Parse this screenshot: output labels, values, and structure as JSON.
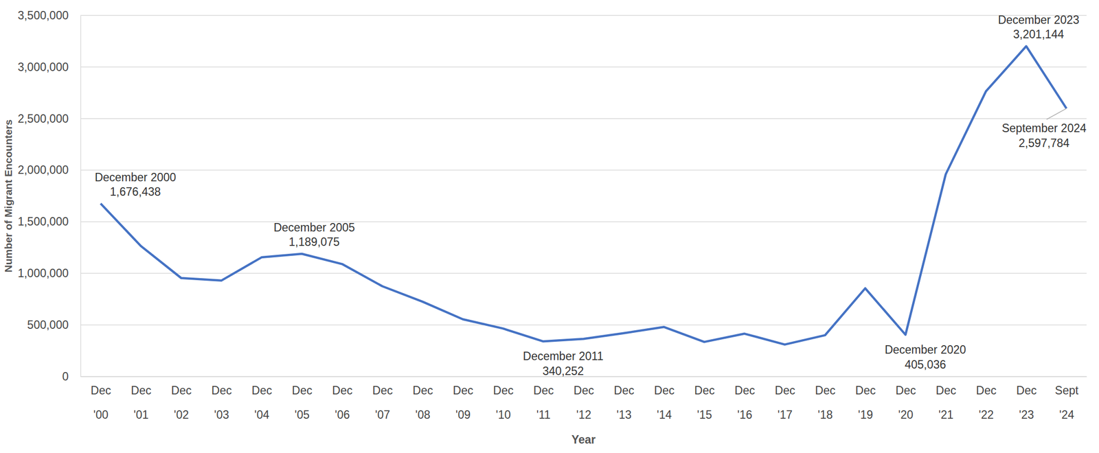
{
  "chart_data": {
    "type": "line",
    "x_label": "Year",
    "y_label": "Number of Migrant Encounters",
    "categories": [
      "Dec '00",
      "Dec '01",
      "Dec '02",
      "Dec '03",
      "Dec '04",
      "Dec '05",
      "Dec '06",
      "Dec '07",
      "Dec '08",
      "Dec '09",
      "Dec '10",
      "Dec '11",
      "Dec '12",
      "Dec '13",
      "Dec '14",
      "Dec '15",
      "Dec '16",
      "Dec '17",
      "Dec '18",
      "Dec '19",
      "Dec '20",
      "Dec '21",
      "Dec '22",
      "Dec '23",
      "Sept '24"
    ],
    "values": [
      1676438,
      1265000,
      955000,
      930000,
      1155000,
      1189075,
      1090000,
      875000,
      725000,
      555000,
      465000,
      340252,
      365000,
      420000,
      480000,
      335000,
      415000,
      310000,
      400000,
      855000,
      405036,
      1960000,
      2765000,
      3201144,
      2597784
    ],
    "value_labels": [
      "1,676,438",
      null,
      null,
      null,
      null,
      "1,189,075",
      null,
      null,
      null,
      null,
      null,
      "340,252",
      null,
      null,
      null,
      null,
      null,
      null,
      null,
      null,
      "405,036",
      null,
      null,
      "3,201,144",
      "2,597,784"
    ],
    "annotations": [
      {
        "category": "Dec '00",
        "text": "December 2000"
      },
      {
        "category": "Dec '05",
        "text": "December 2005"
      },
      {
        "category": "Dec '11",
        "text": "December 2011"
      },
      {
        "category": "Dec '20",
        "text": "December 2020"
      },
      {
        "category": "Dec '23",
        "text": "December 2023"
      },
      {
        "category": "Sept '24",
        "text": "September 2024"
      }
    ],
    "data_labels": true,
    "color": "#4472c4",
    "ylim": [
      0,
      3500000
    ],
    "yticks": [
      0,
      {
        "value": 500000,
        "label": "500,000"
      },
      {
        "value": 1000000,
        "label": "1,000,000"
      },
      {
        "value": 1500000,
        "label": "1,500,000"
      },
      {
        "value": 2000000,
        "label": "2,000,000"
      },
      {
        "value": 2500000,
        "label": "2,500,000"
      },
      {
        "value": 3000000,
        "label": "3,000,000"
      },
      {
        "value": 3500000,
        "label": "3,500,000"
      }
    ],
    "grid": true
  }
}
